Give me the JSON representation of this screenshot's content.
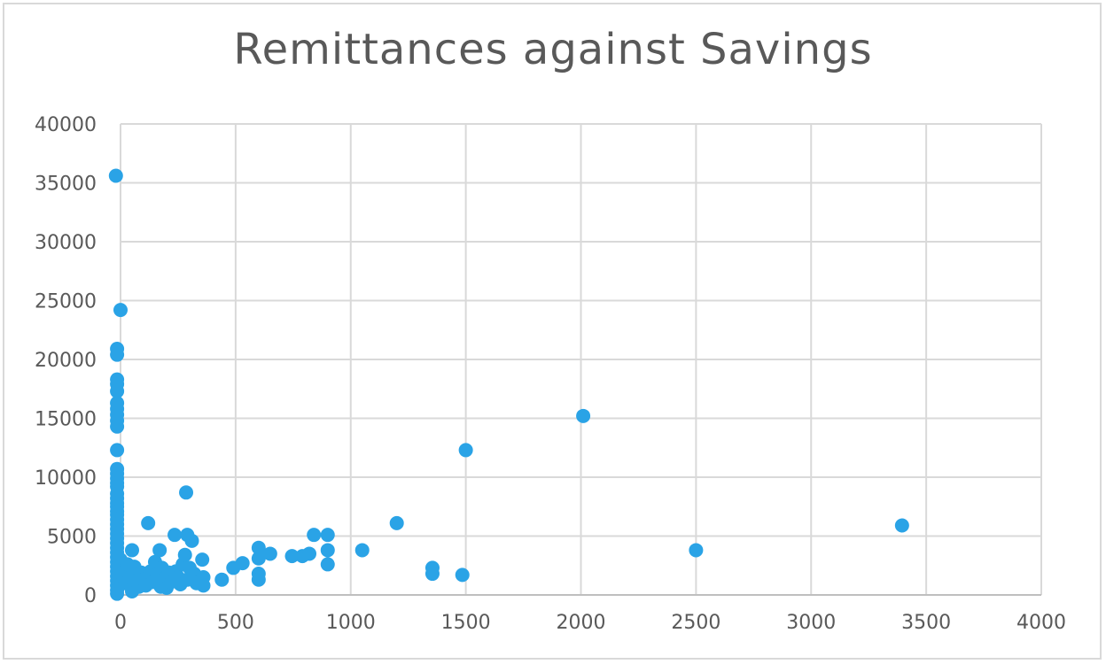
{
  "chart_data": {
    "type": "scatter",
    "title": "Remittances against Savings",
    "xlabel": "",
    "ylabel": "",
    "xlim": [
      0,
      4000
    ],
    "ylim": [
      0,
      40000
    ],
    "x_ticks": [
      "0",
      "500",
      "1000",
      "1500",
      "2000",
      "2500",
      "3000",
      "3500",
      "4000"
    ],
    "y_ticks": [
      "0",
      "5000",
      "10000",
      "15000",
      "20000",
      "25000",
      "30000",
      "35000",
      "40000"
    ],
    "grid": true,
    "legend": "none",
    "marker_color": "#2aa3e6",
    "series": [
      {
        "points": [
          [
            -20,
            35600
          ],
          [
            0,
            24200
          ],
          [
            -15,
            20900
          ],
          [
            -15,
            20400
          ],
          [
            -15,
            18300
          ],
          [
            -15,
            17900
          ],
          [
            -15,
            17300
          ],
          [
            -15,
            16300
          ],
          [
            -15,
            15800
          ],
          [
            -15,
            15300
          ],
          [
            -15,
            14800
          ],
          [
            -15,
            14300
          ],
          [
            -15,
            12300
          ],
          [
            -15,
            10700
          ],
          [
            -15,
            10300
          ],
          [
            -15,
            9900
          ],
          [
            -15,
            9500
          ],
          [
            -15,
            9200
          ],
          [
            -15,
            8600
          ],
          [
            -15,
            8200
          ],
          [
            -15,
            7800
          ],
          [
            -15,
            7500
          ],
          [
            -15,
            7100
          ],
          [
            -15,
            6800
          ],
          [
            -15,
            6400
          ],
          [
            -15,
            6000
          ],
          [
            -15,
            5600
          ],
          [
            -15,
            5200
          ],
          [
            -15,
            4800
          ],
          [
            -15,
            4400
          ],
          [
            -15,
            4000
          ],
          [
            -15,
            3600
          ],
          [
            -15,
            3200
          ],
          [
            -15,
            2800
          ],
          [
            -15,
            2400
          ],
          [
            -15,
            2000
          ],
          [
            -15,
            1600
          ],
          [
            -15,
            1200
          ],
          [
            -15,
            800
          ],
          [
            -15,
            400
          ],
          [
            -15,
            100
          ],
          [
            0,
            3000
          ],
          [
            10,
            1900
          ],
          [
            20,
            1000
          ],
          [
            30,
            2600
          ],
          [
            40,
            1500
          ],
          [
            50,
            3800
          ],
          [
            50,
            300
          ],
          [
            60,
            2400
          ],
          [
            70,
            1200
          ],
          [
            80,
            700
          ],
          [
            90,
            1900
          ],
          [
            100,
            1300
          ],
          [
            110,
            800
          ],
          [
            120,
            6100
          ],
          [
            130,
            2000
          ],
          [
            140,
            1100
          ],
          [
            150,
            2800
          ],
          [
            160,
            1700
          ],
          [
            170,
            3800
          ],
          [
            175,
            700
          ],
          [
            180,
            2300
          ],
          [
            190,
            1400
          ],
          [
            200,
            600
          ],
          [
            210,
            1900
          ],
          [
            220,
            1100
          ],
          [
            235,
            5100
          ],
          [
            240,
            2000
          ],
          [
            250,
            1500
          ],
          [
            260,
            900
          ],
          [
            270,
            2600
          ],
          [
            280,
            3400
          ],
          [
            285,
            8700
          ],
          [
            290,
            5100
          ],
          [
            290,
            1300
          ],
          [
            300,
            2300
          ],
          [
            310,
            4600
          ],
          [
            320,
            1800
          ],
          [
            330,
            1000
          ],
          [
            355,
            3000
          ],
          [
            360,
            1500
          ],
          [
            360,
            800
          ],
          [
            440,
            1300
          ],
          [
            490,
            2300
          ],
          [
            530,
            2700
          ],
          [
            600,
            4000
          ],
          [
            600,
            3100
          ],
          [
            600,
            1800
          ],
          [
            600,
            1300
          ],
          [
            650,
            3500
          ],
          [
            745,
            3300
          ],
          [
            790,
            3300
          ],
          [
            820,
            3500
          ],
          [
            840,
            5100
          ],
          [
            900,
            5100
          ],
          [
            900,
            3800
          ],
          [
            900,
            2600
          ],
          [
            1050,
            3800
          ],
          [
            1200,
            6100
          ],
          [
            1355,
            2300
          ],
          [
            1355,
            1800
          ],
          [
            1485,
            1700
          ],
          [
            1500,
            12300
          ],
          [
            2010,
            15200
          ],
          [
            2500,
            3800
          ],
          [
            3395,
            5900
          ]
        ]
      }
    ]
  }
}
